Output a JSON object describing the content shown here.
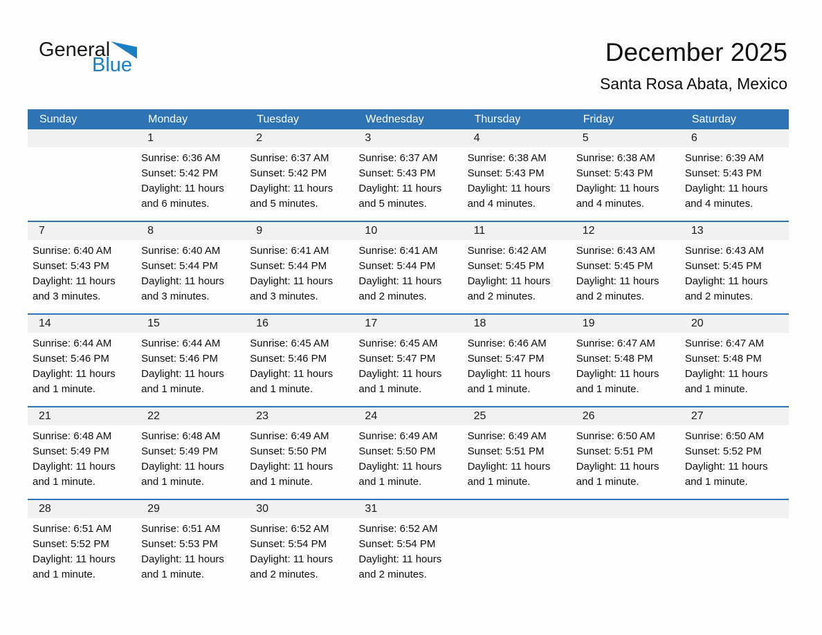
{
  "logo": {
    "part1": "General",
    "part2": "Blue"
  },
  "header": {
    "title": "December 2025",
    "subtitle": "Santa Rosa Abata, Mexico"
  },
  "colors": {
    "header_bg": "#2e74b5",
    "row_line": "#2e74b5",
    "strip_bg": "#f1f1f1",
    "logo_blue": "#1b7fc4"
  },
  "calendar": {
    "day_names": [
      "Sunday",
      "Monday",
      "Tuesday",
      "Wednesday",
      "Thursday",
      "Friday",
      "Saturday"
    ],
    "weeks": [
      [
        null,
        {
          "day": "1",
          "lines": [
            "Sunrise: 6:36 AM",
            "Sunset: 5:42 PM",
            "Daylight: 11 hours",
            "and 6 minutes."
          ]
        },
        {
          "day": "2",
          "lines": [
            "Sunrise: 6:37 AM",
            "Sunset: 5:42 PM",
            "Daylight: 11 hours",
            "and 5 minutes."
          ]
        },
        {
          "day": "3",
          "lines": [
            "Sunrise: 6:37 AM",
            "Sunset: 5:43 PM",
            "Daylight: 11 hours",
            "and 5 minutes."
          ]
        },
        {
          "day": "4",
          "lines": [
            "Sunrise: 6:38 AM",
            "Sunset: 5:43 PM",
            "Daylight: 11 hours",
            "and 4 minutes."
          ]
        },
        {
          "day": "5",
          "lines": [
            "Sunrise: 6:38 AM",
            "Sunset: 5:43 PM",
            "Daylight: 11 hours",
            "and 4 minutes."
          ]
        },
        {
          "day": "6",
          "lines": [
            "Sunrise: 6:39 AM",
            "Sunset: 5:43 PM",
            "Daylight: 11 hours",
            "and 4 minutes."
          ]
        }
      ],
      [
        {
          "day": "7",
          "lines": [
            "Sunrise: 6:40 AM",
            "Sunset: 5:43 PM",
            "Daylight: 11 hours",
            "and 3 minutes."
          ]
        },
        {
          "day": "8",
          "lines": [
            "Sunrise: 6:40 AM",
            "Sunset: 5:44 PM",
            "Daylight: 11 hours",
            "and 3 minutes."
          ]
        },
        {
          "day": "9",
          "lines": [
            "Sunrise: 6:41 AM",
            "Sunset: 5:44 PM",
            "Daylight: 11 hours",
            "and 3 minutes."
          ]
        },
        {
          "day": "10",
          "lines": [
            "Sunrise: 6:41 AM",
            "Sunset: 5:44 PM",
            "Daylight: 11 hours",
            "and 2 minutes."
          ]
        },
        {
          "day": "11",
          "lines": [
            "Sunrise: 6:42 AM",
            "Sunset: 5:45 PM",
            "Daylight: 11 hours",
            "and 2 minutes."
          ]
        },
        {
          "day": "12",
          "lines": [
            "Sunrise: 6:43 AM",
            "Sunset: 5:45 PM",
            "Daylight: 11 hours",
            "and 2 minutes."
          ]
        },
        {
          "day": "13",
          "lines": [
            "Sunrise: 6:43 AM",
            "Sunset: 5:45 PM",
            "Daylight: 11 hours",
            "and 2 minutes."
          ]
        }
      ],
      [
        {
          "day": "14",
          "lines": [
            "Sunrise: 6:44 AM",
            "Sunset: 5:46 PM",
            "Daylight: 11 hours",
            "and 1 minute."
          ]
        },
        {
          "day": "15",
          "lines": [
            "Sunrise: 6:44 AM",
            "Sunset: 5:46 PM",
            "Daylight: 11 hours",
            "and 1 minute."
          ]
        },
        {
          "day": "16",
          "lines": [
            "Sunrise: 6:45 AM",
            "Sunset: 5:46 PM",
            "Daylight: 11 hours",
            "and 1 minute."
          ]
        },
        {
          "day": "17",
          "lines": [
            "Sunrise: 6:45 AM",
            "Sunset: 5:47 PM",
            "Daylight: 11 hours",
            "and 1 minute."
          ]
        },
        {
          "day": "18",
          "lines": [
            "Sunrise: 6:46 AM",
            "Sunset: 5:47 PM",
            "Daylight: 11 hours",
            "and 1 minute."
          ]
        },
        {
          "day": "19",
          "lines": [
            "Sunrise: 6:47 AM",
            "Sunset: 5:48 PM",
            "Daylight: 11 hours",
            "and 1 minute."
          ]
        },
        {
          "day": "20",
          "lines": [
            "Sunrise: 6:47 AM",
            "Sunset: 5:48 PM",
            "Daylight: 11 hours",
            "and 1 minute."
          ]
        }
      ],
      [
        {
          "day": "21",
          "lines": [
            "Sunrise: 6:48 AM",
            "Sunset: 5:49 PM",
            "Daylight: 11 hours",
            "and 1 minute."
          ]
        },
        {
          "day": "22",
          "lines": [
            "Sunrise: 6:48 AM",
            "Sunset: 5:49 PM",
            "Daylight: 11 hours",
            "and 1 minute."
          ]
        },
        {
          "day": "23",
          "lines": [
            "Sunrise: 6:49 AM",
            "Sunset: 5:50 PM",
            "Daylight: 11 hours",
            "and 1 minute."
          ]
        },
        {
          "day": "24",
          "lines": [
            "Sunrise: 6:49 AM",
            "Sunset: 5:50 PM",
            "Daylight: 11 hours",
            "and 1 minute."
          ]
        },
        {
          "day": "25",
          "lines": [
            "Sunrise: 6:49 AM",
            "Sunset: 5:51 PM",
            "Daylight: 11 hours",
            "and 1 minute."
          ]
        },
        {
          "day": "26",
          "lines": [
            "Sunrise: 6:50 AM",
            "Sunset: 5:51 PM",
            "Daylight: 11 hours",
            "and 1 minute."
          ]
        },
        {
          "day": "27",
          "lines": [
            "Sunrise: 6:50 AM",
            "Sunset: 5:52 PM",
            "Daylight: 11 hours",
            "and 1 minute."
          ]
        }
      ],
      [
        {
          "day": "28",
          "lines": [
            "Sunrise: 6:51 AM",
            "Sunset: 5:52 PM",
            "Daylight: 11 hours",
            "and 1 minute."
          ]
        },
        {
          "day": "29",
          "lines": [
            "Sunrise: 6:51 AM",
            "Sunset: 5:53 PM",
            "Daylight: 11 hours",
            "and 1 minute."
          ]
        },
        {
          "day": "30",
          "lines": [
            "Sunrise: 6:52 AM",
            "Sunset: 5:54 PM",
            "Daylight: 11 hours",
            "and 2 minutes."
          ]
        },
        {
          "day": "31",
          "lines": [
            "Sunrise: 6:52 AM",
            "Sunset: 5:54 PM",
            "Daylight: 11 hours",
            "and 2 minutes."
          ]
        },
        null,
        null,
        null
      ]
    ]
  }
}
